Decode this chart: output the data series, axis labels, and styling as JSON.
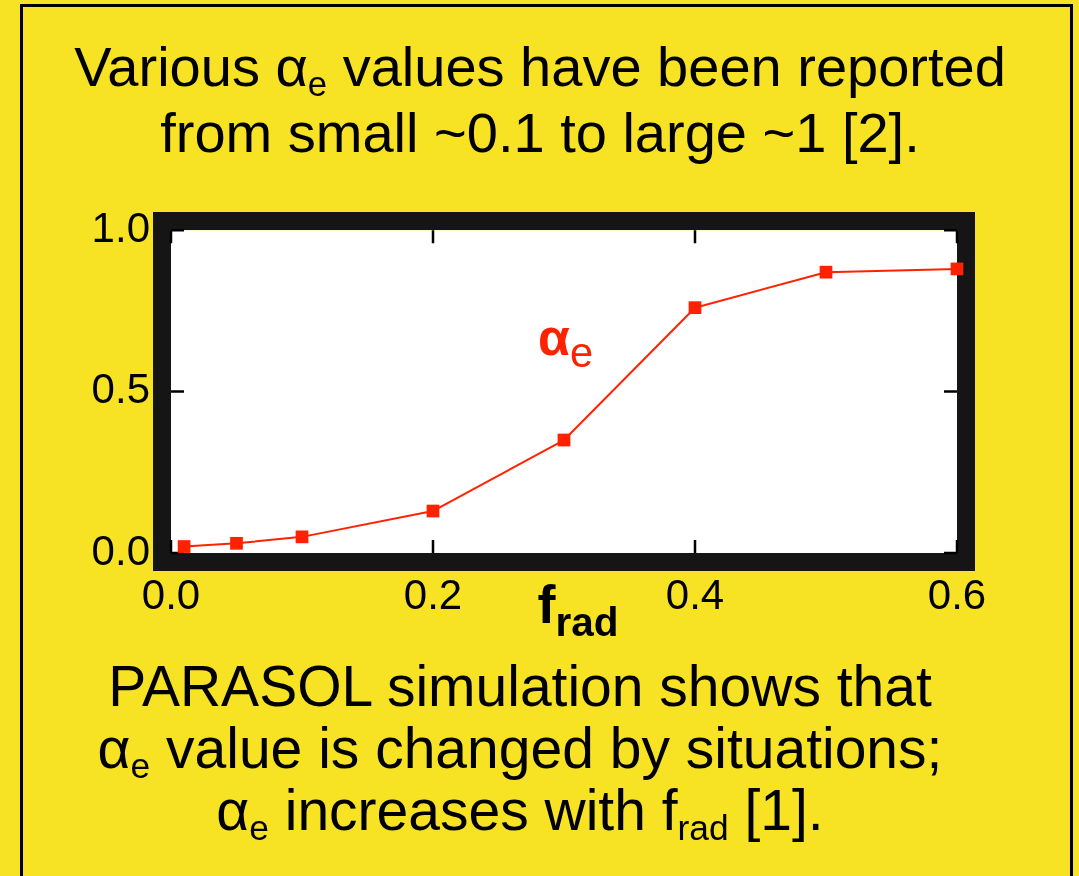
{
  "chart_data": {
    "type": "line",
    "title": "Various α$_{e}$ values have been reported from small ~0.1 to large ~1 [2].",
    "xlabel": "f$_{rad}$",
    "annotations": [
      "PARASOL simulation shows that α$_{e}$ value is changed by situations; α$_{e}$ increases with f$_{rad}$ [1]."
    ],
    "x": [
      0.01,
      0.05,
      0.1,
      0.2,
      0.3,
      0.4,
      0.5,
      0.6
    ],
    "series": [
      {
        "name": "α$_{e}$",
        "color": "#ff2200",
        "values": [
          0.02,
          0.03,
          0.05,
          0.13,
          0.35,
          0.76,
          0.87,
          0.88
        ]
      }
    ],
    "xlim": [
      0,
      0.6
    ],
    "xticks": [
      {
        "value": 0,
        "label": "0.0"
      },
      0.2,
      0.4,
      0.6
    ],
    "ylim": [
      0,
      1
    ],
    "yticks": [
      {
        "value": 0,
        "label": "0.0"
      },
      0.5,
      {
        "value": 1,
        "label": "1.0"
      }
    ],
    "marker": "square",
    "line_style": "solid"
  }
}
